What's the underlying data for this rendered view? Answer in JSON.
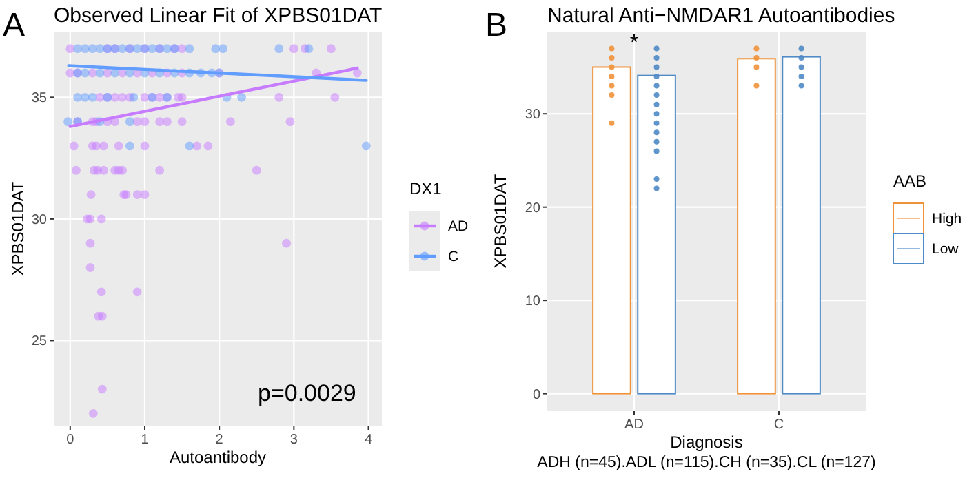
{
  "chart_data": [
    {
      "type": "scatter",
      "title": "Observed Linear Fit of XPBS01DAT",
      "xlabel": "Autoantibody",
      "ylabel": "XPBS01DAT",
      "legend_title": "DX1",
      "legend": "right",
      "grid": true,
      "marker": "circle",
      "xlim": [
        -0.22,
        4.18
      ],
      "xticks": [
        0,
        1,
        2,
        3,
        4
      ],
      "ylim": [
        21.5,
        37.7
      ],
      "yticks": [
        25,
        30,
        35
      ],
      "annotations": [
        "A",
        "p=0.0029"
      ],
      "series": [
        {
          "name": "AD",
          "color": "#c77cff",
          "x": [
            0,
            0.5,
            0.6,
            0.8,
            1.0,
            1.2,
            1.4,
            1.5,
            3.0,
            3.15,
            3.5,
            0,
            0.1,
            0.3,
            0.5,
            0.7,
            0.9,
            1.1,
            1.3,
            1.5,
            2.0,
            3.3,
            3.85,
            0.4,
            0.5,
            0.6,
            0.7,
            0.8,
            1.0,
            1.1,
            1.2,
            1.3,
            1.45,
            1.5,
            2.8,
            3.55,
            0.1,
            0.3,
            0.35,
            0.5,
            0.6,
            0.9,
            1.0,
            1.2,
            1.3,
            1.5,
            2.15,
            2.95,
            0.05,
            0.3,
            0.35,
            0.45,
            0.65,
            1.0,
            1.7,
            1.85,
            0.08,
            0.32,
            0.37,
            0.45,
            0.6,
            0.65,
            0.7,
            1.2,
            2.5,
            0.28,
            0.72,
            0.75,
            0.9,
            1.0,
            0.23,
            0.27,
            0.42,
            0.27,
            2.9,
            0.27,
            0.42,
            0.9,
            0.38,
            0.43,
            0.43,
            0.31
          ],
          "values": [
            37,
            37,
            37,
            37,
            37,
            37,
            37,
            37,
            37,
            37,
            37,
            36,
            36,
            36,
            36,
            36,
            36,
            36,
            36,
            36,
            36,
            36,
            36,
            35,
            35,
            35,
            35,
            35,
            35,
            35,
            35,
            35,
            35,
            35,
            35,
            35,
            34,
            34,
            34,
            34,
            34,
            34,
            34,
            34,
            34,
            34,
            34,
            34,
            33,
            33,
            33,
            33,
            33,
            33,
            33,
            33,
            32,
            32,
            32,
            32,
            32,
            32,
            32,
            32,
            32,
            31,
            31,
            31,
            31,
            31,
            30,
            30,
            30,
            29,
            29,
            28,
            27,
            27,
            26,
            26,
            23,
            22
          ]
        },
        {
          "name": "C",
          "color": "#619cff",
          "x": [
            0.1,
            0.2,
            0.3,
            0.4,
            0.5,
            0.6,
            0.7,
            0.8,
            0.9,
            1.0,
            1.1,
            1.2,
            1.3,
            1.4,
            1.6,
            1.95,
            2.05,
            2.8,
            3.2,
            0.1,
            0.2,
            0.4,
            0.6,
            0.8,
            1.0,
            1.2,
            1.4,
            1.6,
            1.75,
            1.9,
            2.0,
            0.1,
            0.2,
            0.3,
            0.5,
            0.85,
            1.1,
            1.3,
            2.1,
            2.3,
            -0.03,
            0.1,
            0.4,
            0.8,
            0.8,
            1.6,
            3.97
          ],
          "values": [
            37,
            37,
            37,
            37,
            37,
            37,
            37,
            37,
            37,
            37,
            37,
            37,
            37,
            37,
            37,
            37,
            37,
            37,
            37,
            36,
            36,
            36,
            36,
            36,
            36,
            36,
            36,
            36,
            36,
            36,
            36,
            35,
            35,
            35,
            35,
            35,
            35,
            35,
            35,
            35,
            34,
            34,
            34,
            34,
            33,
            33,
            33
          ]
        },
        {
          "type": "line",
          "marker": "none",
          "color": "#c77cff",
          "x": [
            0,
            3.85
          ],
          "values": [
            33.8,
            36.2
          ]
        },
        {
          "type": "line",
          "marker": "none",
          "color": "#619cff",
          "x": [
            -0.02,
            3.97
          ],
          "values": [
            36.3,
            35.7
          ]
        }
      ]
    },
    {
      "type": "bar",
      "title": "Natural Anti−NMDAR1 Autoantibodies",
      "xlabel": "Diagnosis",
      "ylabel": "XPBS01DAT",
      "legend_title": "AAB",
      "legend": "right",
      "grid": true,
      "categories": [
        "AD",
        "C"
      ],
      "ylim": [
        -1.8,
        38.8
      ],
      "yticks": [
        0,
        10,
        20,
        30
      ],
      "annotations": [
        "B",
        "*",
        "ADH (n=45).ADL (n=115).CH (n=35).CL (n=127)"
      ],
      "series": [
        {
          "name": "High",
          "color": "#f0923a",
          "values": [
            35.0,
            35.9
          ]
        },
        {
          "name": "Low",
          "color": "#4f8ac6",
          "values": [
            34.1,
            36.1
          ]
        },
        {
          "type": "scatter",
          "color": "#f0923a",
          "x": [
            "AD",
            "AD",
            "AD",
            "AD",
            "AD",
            "AD",
            "AD",
            "C",
            "C",
            "C",
            "C"
          ],
          "values": [
            37,
            36,
            35,
            34,
            33,
            32,
            29,
            37,
            36,
            35,
            33
          ]
        },
        {
          "type": "scatter",
          "color": "#4f8ac6",
          "x": [
            "AD",
            "AD",
            "AD",
            "AD",
            "AD",
            "AD",
            "AD",
            "AD",
            "AD",
            "AD",
            "AD",
            "AD",
            "AD",
            "AD",
            "C",
            "C",
            "C",
            "C",
            "C"
          ],
          "values": [
            37,
            36,
            35,
            34,
            33,
            32,
            31,
            30,
            29,
            28,
            27,
            26,
            23,
            22,
            37,
            36,
            35,
            34,
            33
          ]
        }
      ]
    }
  ]
}
